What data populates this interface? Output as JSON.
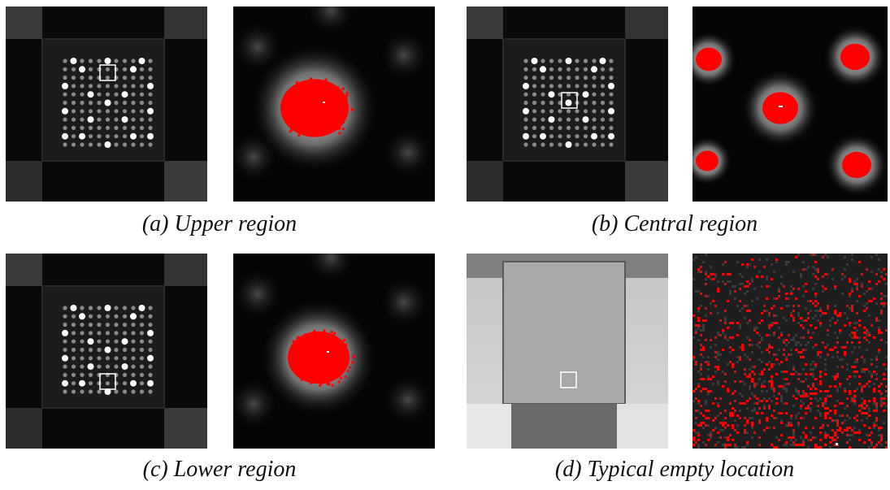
{
  "panels": [
    {
      "caption": "(a) Upper region",
      "selection": "upper"
    },
    {
      "caption": "(b) Central region",
      "selection": "center"
    },
    {
      "caption": "(c) Lower region",
      "selection": "lower"
    },
    {
      "caption": "(d) Typical empty location",
      "selection": "empty"
    }
  ],
  "colors": {
    "background": "#000000",
    "board": "#1c1c1c",
    "grid_dot": "#8a8a8a",
    "big_dot": "#ffffff",
    "highlight": "#ff0000",
    "empty_board": "#b8b8b8"
  }
}
